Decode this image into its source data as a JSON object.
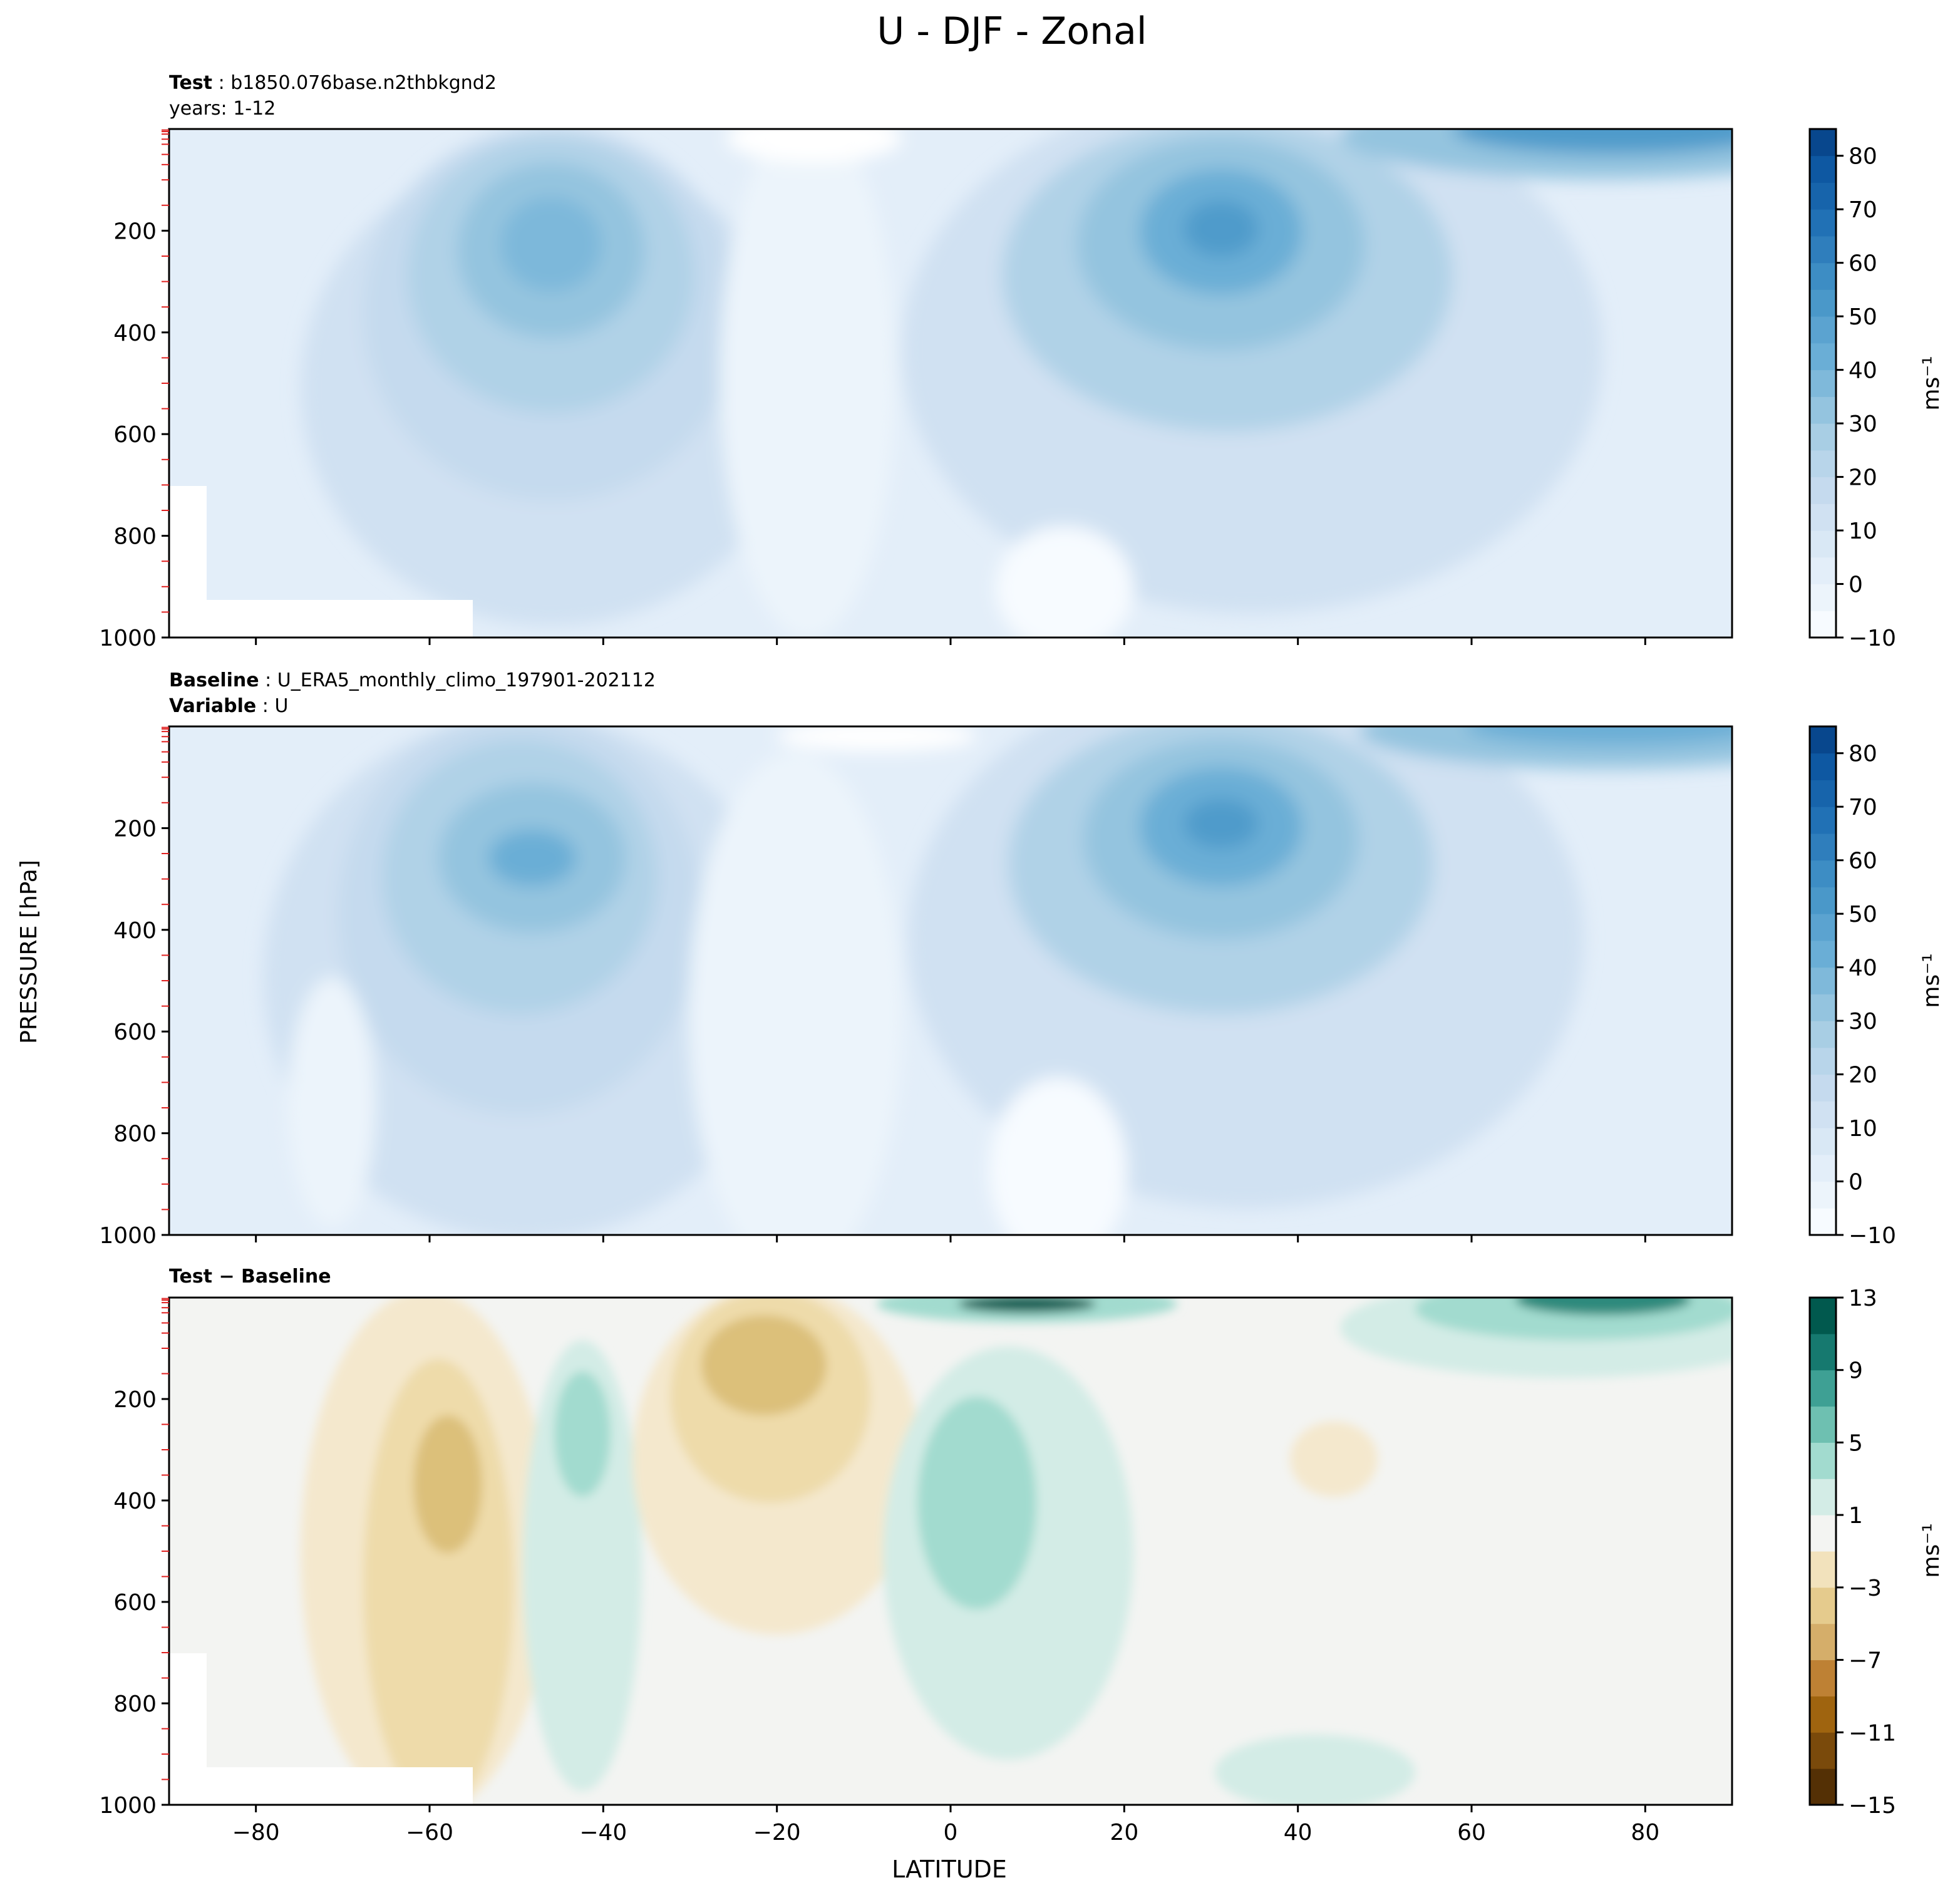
{
  "figure": {
    "title": "U - DJF - Zonal",
    "ylabel": "PRESSURE [hPa]",
    "xlabel": "LATITUDE"
  },
  "panels": [
    {
      "id": "test",
      "label_bold": "Test",
      "label_sep": " : ",
      "label_text": "b1850.076base.n2thbkgnd2",
      "line2_bold": "",
      "line2_sep": "",
      "line2_text": "years: 1-12",
      "colorbar_unit": "ms⁻¹"
    },
    {
      "id": "baseline",
      "label_bold": "Baseline",
      "label_sep": " : ",
      "label_text": "U_ERA5_monthly_climo_197901-202112",
      "line2_bold": "Variable",
      "line2_sep": " : ",
      "line2_text": "U",
      "colorbar_unit": "ms⁻¹"
    },
    {
      "id": "diff",
      "label_bold": "Test − Baseline",
      "label_sep": "",
      "label_text": "",
      "line2_bold": "",
      "line2_sep": "",
      "line2_text": "",
      "colorbar_unit": "ms⁻¹"
    }
  ],
  "chart_data": [
    {
      "type": "heatmap",
      "title": "Test : b1850.076base.n2thbkgnd2 years: 1-12",
      "xlabel": "LATITUDE",
      "ylabel": "PRESSURE [hPa]",
      "xlim": [
        -90,
        90
      ],
      "ylim": [
        1000,
        0
      ],
      "xticks": [
        -80,
        -60,
        -40,
        -20,
        0,
        20,
        40,
        60,
        80
      ],
      "yticks": [
        200,
        400,
        600,
        800,
        1000
      ],
      "colorbar_ticks": [
        -10,
        0,
        10,
        20,
        30,
        40,
        50,
        60,
        70,
        80
      ],
      "colorbar_levels": [
        -10,
        -5,
        0,
        5,
        10,
        15,
        20,
        25,
        30,
        35,
        40,
        45,
        50,
        55,
        60,
        65,
        70,
        75,
        80,
        85
      ],
      "colorbar_label": "ms⁻¹",
      "colormap": "Blues",
      "features": [
        {
          "name": "SH subtropical jet",
          "lat": -47,
          "pressure": 250,
          "max": 37
        },
        {
          "name": "NH subtropical jet",
          "lat": 32,
          "pressure": 200,
          "max": 45
        },
        {
          "name": "NH polar stratospheric jet",
          "lat": 65,
          "pressure": 10,
          "max": 40
        },
        {
          "name": "Equatorial easterlies",
          "lat": 5,
          "pressure": 850,
          "max": -4
        }
      ]
    },
    {
      "type": "heatmap",
      "title": "Baseline : U_ERA5_monthly_climo_197901-202112 Variable : U",
      "xlabel": "LATITUDE",
      "ylabel": "PRESSURE [hPa]",
      "xlim": [
        -90,
        90
      ],
      "ylim": [
        1000,
        0
      ],
      "xticks": [
        -80,
        -60,
        -40,
        -20,
        0,
        20,
        40,
        60,
        80
      ],
      "yticks": [
        200,
        400,
        600,
        800,
        1000
      ],
      "colorbar_ticks": [
        -10,
        0,
        10,
        20,
        30,
        40,
        50,
        60,
        70,
        80
      ],
      "colorbar_levels": [
        -10,
        -5,
        0,
        5,
        10,
        15,
        20,
        25,
        30,
        35,
        40,
        45,
        50,
        55,
        60,
        65,
        70,
        75,
        80,
        85
      ],
      "colorbar_label": "ms⁻¹",
      "colormap": "Blues",
      "features": [
        {
          "name": "SH subtropical jet",
          "lat": -49,
          "pressure": 270,
          "max": 35
        },
        {
          "name": "NH subtropical jet",
          "lat": 31,
          "pressure": 200,
          "max": 42
        },
        {
          "name": "NH polar stratospheric jet",
          "lat": 66,
          "pressure": 10,
          "max": 38
        },
        {
          "name": "Equatorial easterlies",
          "lat": 7,
          "pressure": 850,
          "max": -5
        }
      ]
    },
    {
      "type": "heatmap",
      "title": "Test − Baseline",
      "xlabel": "LATITUDE",
      "ylabel": "PRESSURE [hPa]",
      "xlim": [
        -90,
        90
      ],
      "ylim": [
        1000,
        0
      ],
      "xticks": [
        -80,
        -60,
        -40,
        -20,
        0,
        20,
        40,
        60,
        80
      ],
      "yticks": [
        200,
        400,
        600,
        800,
        1000
      ],
      "colorbar_ticks": [
        -15,
        -11,
        -7,
        -3,
        1,
        5,
        9,
        13
      ],
      "colorbar_levels": [
        -15,
        -13,
        -11,
        -9,
        -7,
        -5,
        -3,
        -1,
        1,
        3,
        5,
        7,
        9,
        11,
        13
      ],
      "colorbar_label": "ms⁻¹",
      "colormap": "BrBG",
      "features": [
        {
          "name": "negative SH midlat",
          "lat": -58,
          "pressure": 330,
          "value": -7
        },
        {
          "name": "positive SH",
          "lat": -43,
          "pressure": 260,
          "value": 4
        },
        {
          "name": "negative subtropics",
          "lat": -22,
          "pressure": 160,
          "value": -6
        },
        {
          "name": "positive tropics",
          "lat": 2,
          "pressure": 400,
          "value": 4
        },
        {
          "name": "positive top equator",
          "lat": 10,
          "pressure": 20,
          "value": 13
        },
        {
          "name": "positive NH polar strat",
          "lat": 68,
          "pressure": 20,
          "value": 12
        },
        {
          "name": "negative NH midlat",
          "lat": 43,
          "pressure": 340,
          "value": -2
        }
      ]
    }
  ]
}
